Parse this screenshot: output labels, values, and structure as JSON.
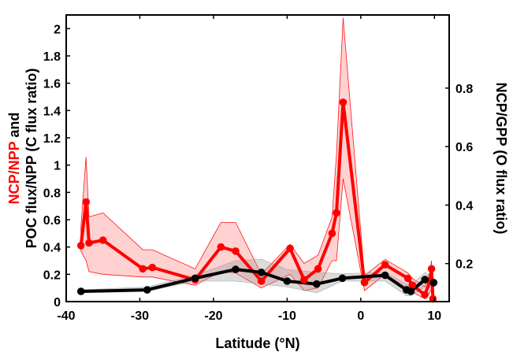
{
  "chart_data": {
    "type": "line",
    "xlabel": "Latitude (°N)",
    "ylabel_left_parts": [
      {
        "text": "NCP/NPP",
        "color": "#ff0000"
      },
      {
        "text": " and",
        "color": "#000000"
      }
    ],
    "ylabel_left_line2": "POC flux/NPP (C flux ratio)",
    "ylabel_right": "NCP/GPP (O flux ratio)",
    "xlim": [
      -40,
      12
    ],
    "ylim_left": [
      0,
      2.1
    ],
    "ylim_right": [
      0.07,
      1.05
    ],
    "x_ticks": [
      -40,
      -30,
      -20,
      -10,
      0,
      10
    ],
    "x_tick_labels": [
      "-40",
      "-30",
      "-20",
      "-10",
      "0",
      "10"
    ],
    "y_left_ticks": [
      0,
      0.2,
      0.4,
      0.6,
      0.8,
      1,
      1.2,
      1.4,
      1.6,
      1.8,
      2
    ],
    "y_left_tick_labels": [
      "0",
      "0.2",
      "0.4",
      "0.6",
      "0.8",
      "1",
      "1.2",
      "1.4",
      "1.6",
      "1.8",
      "2"
    ],
    "y_right_ticks": [
      0.2,
      0.4,
      0.6,
      0.8
    ],
    "y_right_tick_labels": [
      "0.2",
      "0.4",
      "0.6",
      "0.8"
    ],
    "grid": false,
    "series": [
      {
        "color": "#ff0000",
        "band_color": "#ff0000",
        "axis": "left",
        "x": [
          -38,
          -37.3,
          -36.9,
          -35,
          -29.6,
          -28.3,
          -22.5,
          -19,
          -17,
          -13.5,
          -9.6,
          -7.7,
          -5.8,
          -3.9,
          -3.3,
          -2.4,
          0.5,
          3.3,
          6.4,
          7.0,
          8.7,
          9.4,
          9.6,
          9.8
        ],
        "y": [
          0.41,
          0.73,
          0.43,
          0.45,
          0.24,
          0.25,
          0.16,
          0.4,
          0.37,
          0.15,
          0.39,
          0.16,
          0.24,
          0.5,
          0.65,
          1.46,
          0.14,
          0.27,
          0.17,
          0.12,
          0.05,
          0.15,
          0.24,
          0.02
        ],
        "lower": [
          0.37,
          0.3,
          0.22,
          0.2,
          0.18,
          0.18,
          0.12,
          0.22,
          0.21,
          0.1,
          0.2,
          0.08,
          0.1,
          0.3,
          0.3,
          0.9,
          0.08,
          0.2,
          0.08,
          0.07,
          0.02,
          0.07,
          0.1,
          0.0
        ],
        "upper": [
          0.55,
          1.06,
          0.62,
          0.65,
          0.38,
          0.38,
          0.24,
          0.58,
          0.58,
          0.2,
          0.42,
          0.28,
          0.34,
          0.62,
          1.08,
          2.08,
          0.19,
          0.31,
          0.21,
          0.17,
          0.11,
          0.22,
          0.3,
          0.05
        ]
      },
      {
        "color": "#000000",
        "band_color": "#999999",
        "axis": "right",
        "x": [
          -38,
          -29,
          -22.5,
          -17,
          -13.5,
          -10,
          -6,
          -2.5,
          3.3,
          6.2,
          6.8,
          8.7,
          9.9
        ],
        "y": [
          0.105,
          0.11,
          0.15,
          0.18,
          0.17,
          0.14,
          0.13,
          0.15,
          0.16,
          0.11,
          0.105,
          0.145,
          0.135
        ],
        "lower": [
          0.1,
          0.105,
          0.14,
          0.14,
          0.13,
          0.12,
          0.1,
          0.14,
          0.14,
          0.09,
          0.09,
          0.12,
          0.12
        ],
        "upper": [
          0.11,
          0.12,
          0.16,
          0.21,
          0.215,
          0.18,
          0.17,
          0.165,
          0.17,
          0.13,
          0.125,
          0.17,
          0.15
        ]
      }
    ]
  }
}
